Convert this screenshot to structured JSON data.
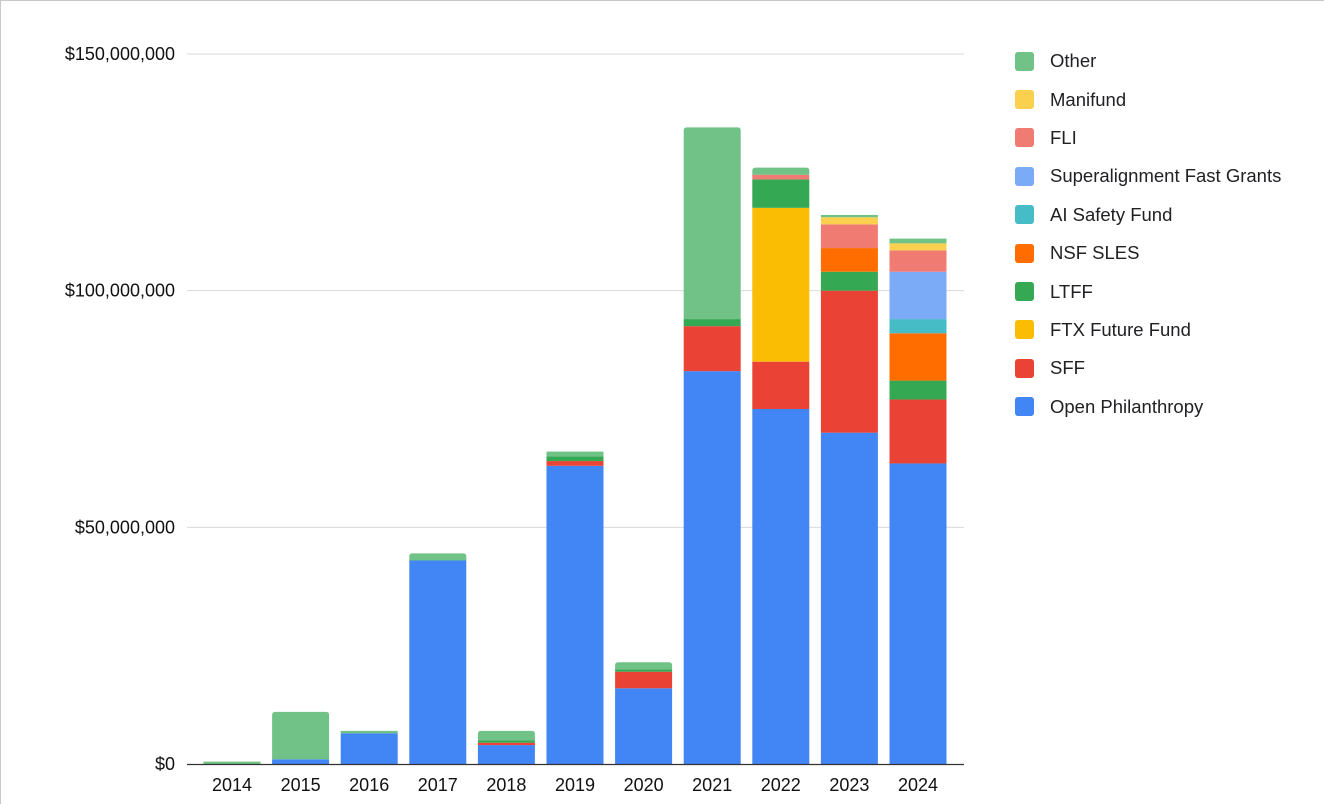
{
  "chart_data": {
    "type": "bar",
    "stacked": true,
    "title": "",
    "xlabel": "",
    "ylabel": "",
    "ylim": [
      0,
      150000000
    ],
    "y_ticks": [
      {
        "value": 0,
        "label": "$0"
      },
      {
        "value": 50000000,
        "label": "$50,000,000"
      },
      {
        "value": 100000000,
        "label": "$100,000,000"
      },
      {
        "value": 150000000,
        "label": "$150,000,000"
      }
    ],
    "grid": true,
    "legend_position": "right",
    "categories": [
      "2014",
      "2015",
      "2016",
      "2017",
      "2018",
      "2019",
      "2020",
      "2021",
      "2022",
      "2023",
      "2024"
    ],
    "series": [
      {
        "name": "Open Philanthropy",
        "color": "#4285f4",
        "values": [
          0,
          1000000,
          6500000,
          43000000,
          4000000,
          63000000,
          16000000,
          83000000,
          75000000,
          70000000,
          63500000
        ]
      },
      {
        "name": "SFF",
        "color": "#ea4335",
        "values": [
          0,
          0,
          0,
          0,
          500000,
          1000000,
          3500000,
          9500000,
          10000000,
          30000000,
          13500000
        ]
      },
      {
        "name": "FTX Future Fund",
        "color": "#fbbc04",
        "values": [
          0,
          0,
          0,
          0,
          0,
          0,
          0,
          0,
          32500000,
          0,
          0
        ]
      },
      {
        "name": "LTFF",
        "color": "#34a853",
        "values": [
          0,
          0,
          0,
          0,
          500000,
          1000000,
          500000,
          1500000,
          6000000,
          4000000,
          4000000
        ]
      },
      {
        "name": "NSF SLES",
        "color": "#ff6d01",
        "values": [
          0,
          0,
          0,
          0,
          0,
          0,
          0,
          0,
          0,
          5000000,
          10000000
        ]
      },
      {
        "name": "AI Safety Fund",
        "color": "#46bdc6",
        "values": [
          0,
          0,
          0,
          0,
          0,
          0,
          0,
          0,
          0,
          0,
          3000000
        ]
      },
      {
        "name": "Superalignment Fast Grants",
        "color": "#7baaf7",
        "values": [
          0,
          0,
          0,
          0,
          0,
          0,
          0,
          0,
          0,
          0,
          10000000
        ]
      },
      {
        "name": "FLI",
        "color": "#f07b72",
        "values": [
          0,
          0,
          0,
          0,
          0,
          0,
          0,
          0,
          1000000,
          5000000,
          4500000
        ]
      },
      {
        "name": "Manifund",
        "color": "#fcd04f",
        "values": [
          0,
          0,
          0,
          0,
          0,
          0,
          0,
          0,
          0,
          1500000,
          1500000
        ]
      },
      {
        "name": "Other",
        "color": "#71c287",
        "values": [
          500000,
          10000000,
          500000,
          1500000,
          2000000,
          1000000,
          1500000,
          40500000,
          1500000,
          500000,
          1000000
        ]
      }
    ],
    "legend_order": [
      "Other",
      "Manifund",
      "FLI",
      "Superalignment Fast Grants",
      "AI Safety Fund",
      "NSF SLES",
      "LTFF",
      "FTX Future Fund",
      "SFF",
      "Open Philanthropy"
    ]
  }
}
